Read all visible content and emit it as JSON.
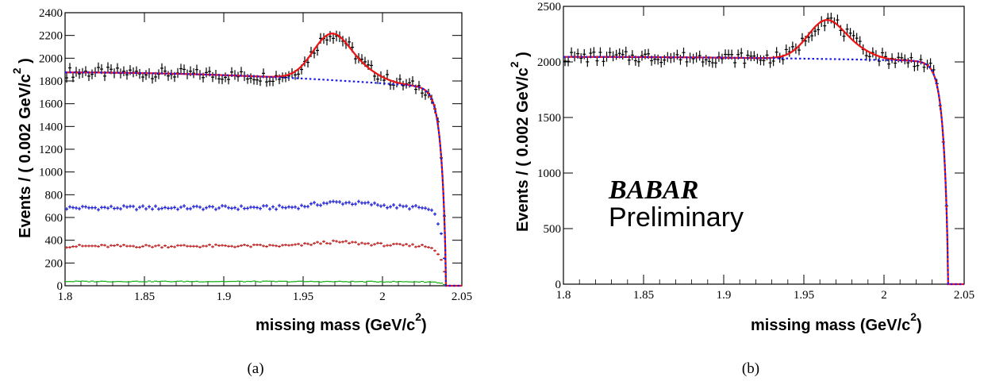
{
  "chart_data": [
    {
      "type": "scatter",
      "panel": "a",
      "caption": "(a)",
      "xlabel_main": "missing mass (GeV/c",
      "xlabel_sup": "2",
      "xlabel_end": ")",
      "ylabel_main": "Events / ( 0.002 GeV/c",
      "ylabel_sup": "2",
      "ylabel_end": " )",
      "xlim": [
        1.8,
        2.05
      ],
      "ylim": [
        0,
        2400
      ],
      "xticks": [
        "1.8",
        "1.85",
        "1.9",
        "1.95",
        "2",
        "2.05"
      ],
      "xtick_values": [
        1.8,
        1.85,
        1.9,
        1.95,
        2.0,
        2.05
      ],
      "yticks": [
        "0",
        "200",
        "400",
        "600",
        "800",
        "1000",
        "1200",
        "1400",
        "1600",
        "1800",
        "2000",
        "2200",
        "2400"
      ],
      "ytick_values": [
        0,
        200,
        400,
        600,
        800,
        1000,
        1200,
        1400,
        1600,
        1800,
        2000,
        2200,
        2400
      ],
      "signal": {
        "center": 1.968,
        "width": 0.0118,
        "shoulder_center": 1.99,
        "shoulder_width": 0.011
      },
      "series": [
        {
          "kind": "data",
          "color": "#000000",
          "base": 1875,
          "slope": -2400,
          "peak": 400,
          "shoulder": 70
        },
        {
          "kind": "data",
          "color": "#1a1adb",
          "base": 685,
          "slope": 100,
          "peak": 40,
          "shoulder": 25
        },
        {
          "kind": "data",
          "color": "#c02020",
          "base": 348,
          "slope": 120,
          "peak": 30,
          "shoulder": 12
        },
        {
          "kind": "data",
          "color": "#10b010",
          "base": 38,
          "slope": -60,
          "peak": 0,
          "shoulder": 0
        },
        {
          "kind": "fit_total",
          "color": "#ee1111",
          "base": 1875,
          "slope": -2400,
          "peak": 400,
          "shoulder": 70
        },
        {
          "kind": "fit_background",
          "color": "#1a1aee",
          "base": 1875,
          "slope": -2400,
          "peak": 0,
          "shoulder": 0
        }
      ]
    },
    {
      "type": "scatter",
      "panel": "b",
      "caption": "(b)",
      "xlabel_main": "missing mass (GeV/c",
      "xlabel_sup": "2",
      "xlabel_end": ")",
      "ylabel_main": "Events / ( 0.002 GeV/c",
      "ylabel_sup": "2",
      "ylabel_end": " )",
      "logo": "BABAR",
      "annotation": "Preliminary",
      "xlim": [
        1.8,
        2.05
      ],
      "ylim": [
        0,
        2500
      ],
      "xticks": [
        "1.8",
        "1.85",
        "1.9",
        "1.95",
        "2",
        "2.05"
      ],
      "xtick_values": [
        1.8,
        1.85,
        1.9,
        1.95,
        2.0,
        2.05
      ],
      "yticks": [
        "0",
        "500",
        "1000",
        "1500",
        "2000",
        "2500"
      ],
      "ytick_values": [
        0,
        500,
        1000,
        1500,
        2000,
        2500
      ],
      "signal": {
        "center": 1.964,
        "width": 0.0115,
        "shoulder_center": 1.985,
        "shoulder_width": 0.01
      },
      "series": [
        {
          "kind": "data",
          "color": "#000000",
          "base": 2045,
          "slope": -700,
          "peak": 345,
          "shoulder": 55
        },
        {
          "kind": "fit_total",
          "color": "#ee1111",
          "base": 2045,
          "slope": -700,
          "peak": 345,
          "shoulder": 55
        },
        {
          "kind": "fit_background",
          "color": "#1a1aee",
          "base": 2045,
          "slope": -700,
          "peak": 0,
          "shoulder": 0
        }
      ]
    }
  ]
}
